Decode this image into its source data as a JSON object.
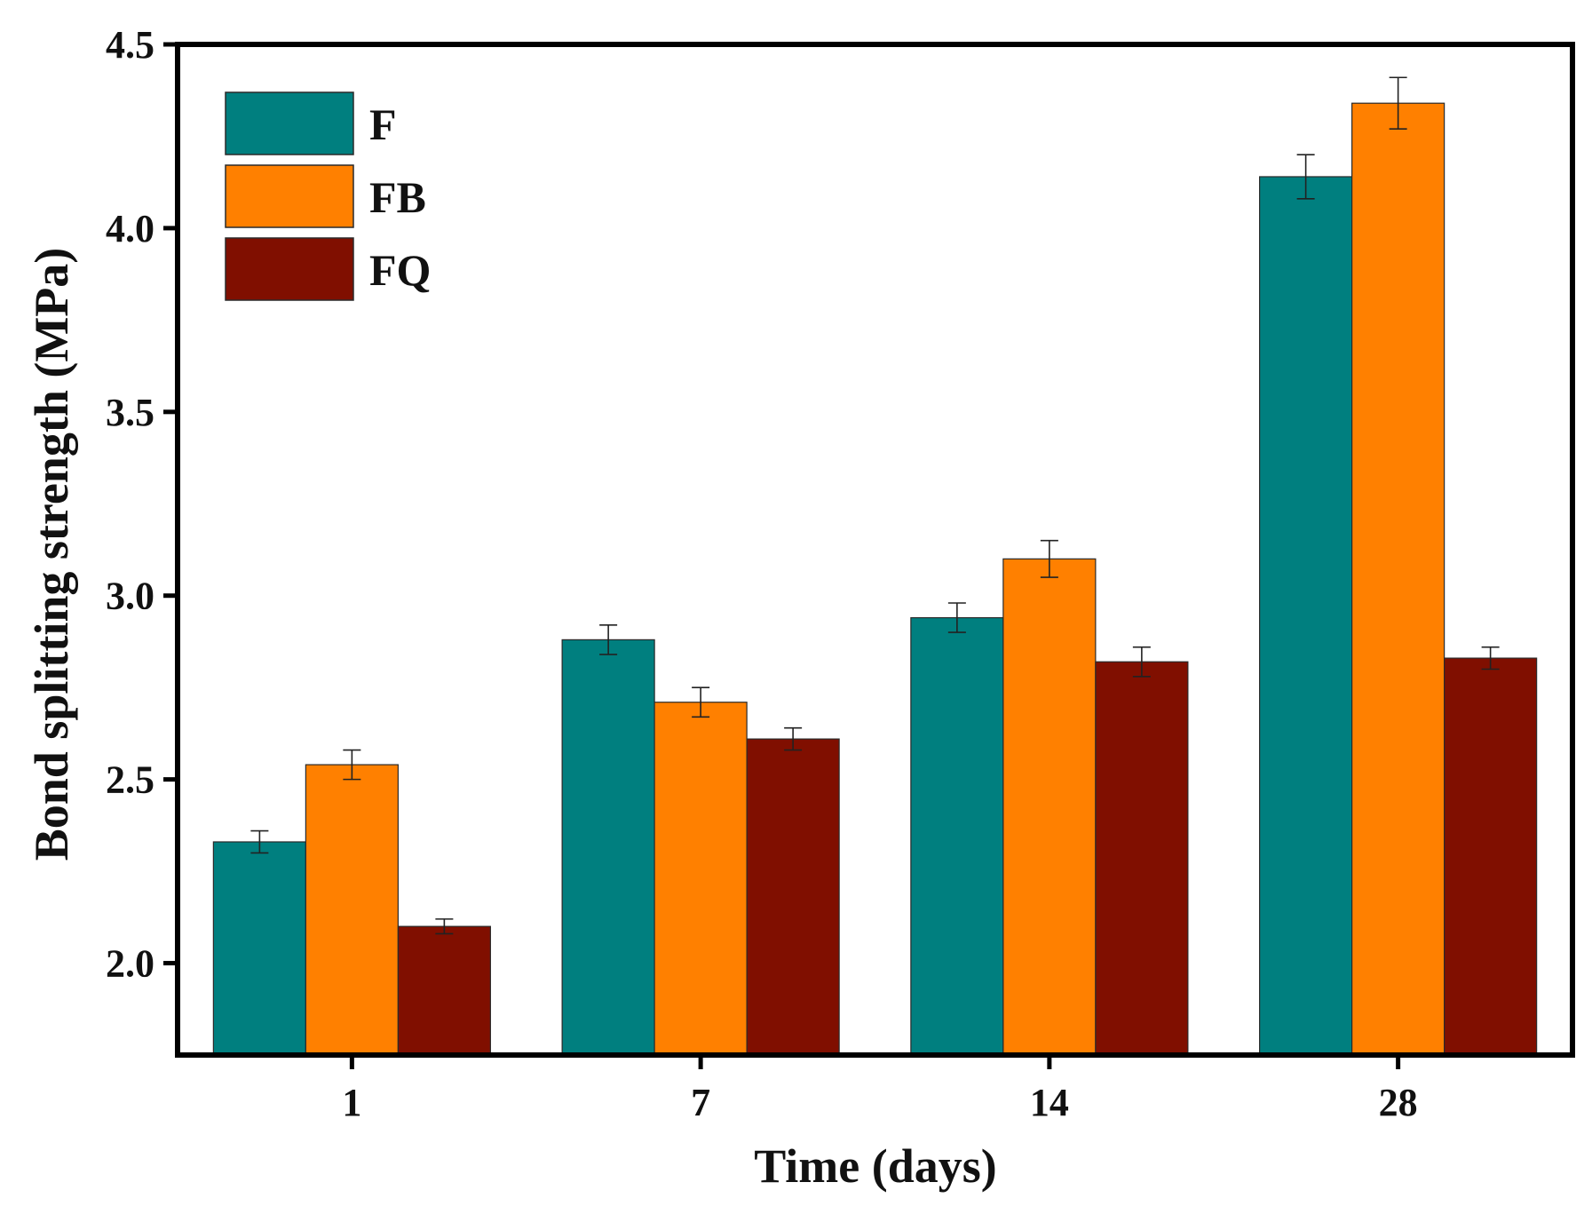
{
  "chart_data": {
    "type": "bar",
    "title": "",
    "xlabel": "Time (days)",
    "ylabel": "Bond splitting strength (MPa)",
    "categories": [
      "1",
      "7",
      "14",
      "28"
    ],
    "ylim": [
      1.75,
      4.5
    ],
    "yticks": [
      2.0,
      2.5,
      3.0,
      3.5,
      4.0,
      4.5
    ],
    "ytick_labels": [
      "2.0",
      "2.5",
      "3.0",
      "3.5",
      "4.0",
      "4.5"
    ],
    "legend_position": "top-left",
    "grid": false,
    "series": [
      {
        "name": "F",
        "color": "#007f7f",
        "values": [
          2.33,
          2.88,
          2.94,
          4.14
        ],
        "errors": [
          0.03,
          0.04,
          0.04,
          0.06
        ]
      },
      {
        "name": "FB",
        "color": "#ff8000",
        "values": [
          2.54,
          2.71,
          3.1,
          4.34
        ],
        "errors": [
          0.04,
          0.04,
          0.05,
          0.07
        ]
      },
      {
        "name": "FQ",
        "color": "#800f00",
        "values": [
          2.1,
          2.61,
          2.82,
          2.83
        ],
        "errors": [
          0.02,
          0.03,
          0.04,
          0.03
        ]
      }
    ]
  }
}
